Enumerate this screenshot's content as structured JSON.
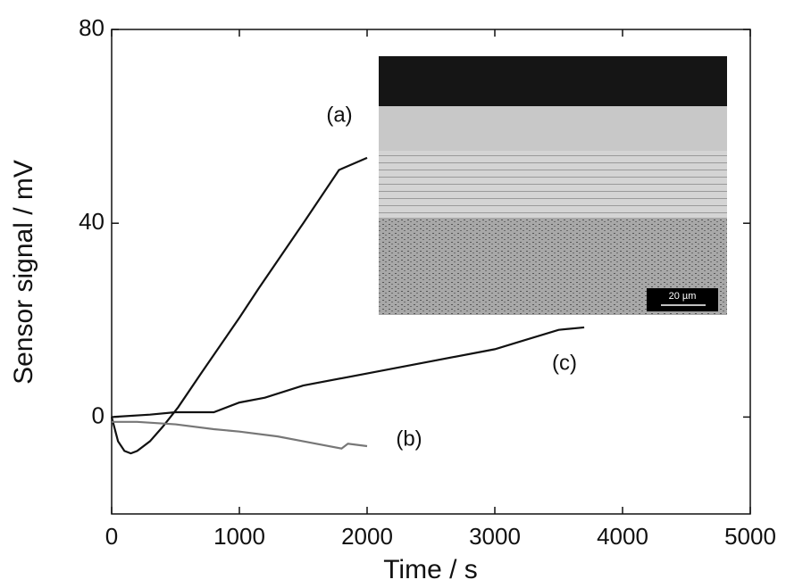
{
  "chart_data": {
    "type": "line",
    "xlabel": "Time / s",
    "ylabel": "Sensor signal / mV",
    "xlim": [
      0,
      5000
    ],
    "xticks": [
      0,
      1000,
      2000,
      3000,
      4000,
      5000
    ],
    "ylim": [
      -20,
      80
    ],
    "yticks": [
      0,
      40,
      80
    ],
    "series": [
      {
        "name": "(a)",
        "color": "#111111",
        "x": [
          0,
          50,
          100,
          150,
          200,
          300,
          400,
          520,
          700,
          1000,
          1150,
          1500,
          1780,
          2000
        ],
        "values": [
          0,
          -5,
          -7,
          -7.5,
          -7,
          -5,
          -2,
          2,
          9,
          20.5,
          26.5,
          40,
          51,
          53.5
        ]
      },
      {
        "name": "(b)",
        "color": "#777777",
        "x": [
          0,
          200,
          500,
          800,
          1000,
          1300,
          1500,
          1800,
          1850,
          2000
        ],
        "values": [
          -1,
          -1,
          -1.5,
          -2.5,
          -3,
          -4,
          -5,
          -6.5,
          -5.5,
          -6
        ]
      },
      {
        "name": "(c)",
        "color": "#111111",
        "x": [
          0,
          300,
          500,
          800,
          1000,
          1200,
          1500,
          2000,
          2500,
          3000,
          3500,
          3700
        ],
        "values": [
          0,
          0.5,
          1,
          1,
          3,
          4,
          6.5,
          9,
          11.5,
          14,
          18,
          18.5
        ]
      }
    ]
  },
  "inset": {
    "scale_label": "20 µm"
  }
}
